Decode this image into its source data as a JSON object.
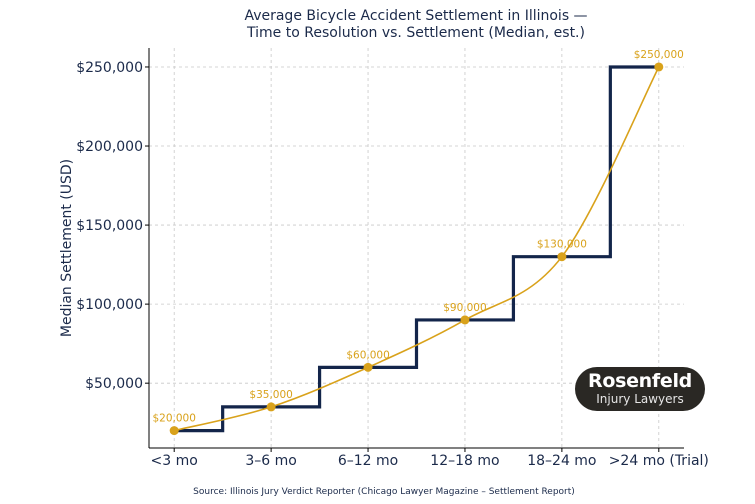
{
  "chart_data": {
    "type": "line",
    "title": "Average Bicycle Accident Settlement in Illinois —\nTime to Resolution vs. Settlement (Median, est.)",
    "title_lines": [
      "Average Bicycle Accident Settlement in Illinois —",
      "Time to Resolution vs. Settlement (Median, est.)"
    ],
    "xlabel": "",
    "ylabel": "Median Settlement (USD)",
    "categories": [
      "<3 mo",
      "3–6 mo",
      "6–12 mo",
      "12–18 mo",
      "18–24 mo",
      ">24 mo (Trial)"
    ],
    "values": [
      20000,
      35000,
      60000,
      90000,
      130000,
      250000
    ],
    "data_labels": [
      "$20,000",
      "$35,000",
      "$60,000",
      "$90,000",
      "$130,000",
      "$250,000"
    ],
    "series": [
      {
        "style": "step-mid",
        "color": "#13254a",
        "values": [
          20000,
          35000,
          60000,
          90000,
          130000,
          250000
        ]
      },
      {
        "style": "smooth-line-markers",
        "color": "#d9a21b",
        "values": [
          20000,
          35000,
          60000,
          90000,
          130000,
          250000
        ]
      }
    ],
    "yticks": [
      50000,
      100000,
      150000,
      200000,
      250000
    ],
    "ytick_labels": [
      "$50,000",
      "$100,000",
      "$150,000",
      "$200,000",
      "$250,000"
    ],
    "ylim": [
      9000,
      262000
    ],
    "xlim": [
      -0.26,
      5.26
    ],
    "grid": true,
    "source": "Source: Illinois Jury Verdict Reporter (Chicago Lawyer Magazine – Settlement Report)"
  },
  "logo": {
    "line1": "Rosenfeld",
    "line2": "Injury Lawyers"
  }
}
